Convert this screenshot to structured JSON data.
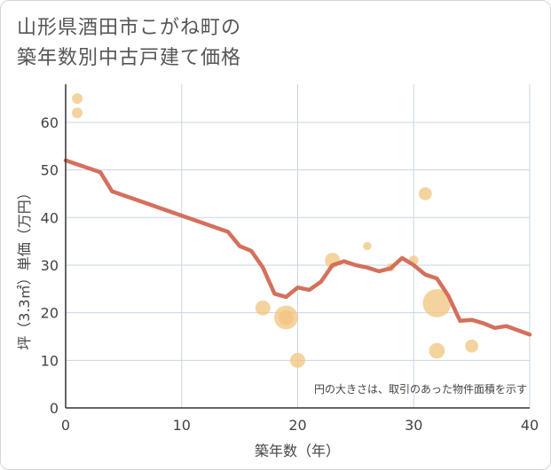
{
  "title_lines": [
    "山形県酒田市こがね町の",
    "築年数別中古戸建て価格"
  ],
  "chart_data": {
    "type": "scatter",
    "xlabel": "築年数（年）",
    "ylabel": "坪（3.3㎡）単価（万円）",
    "xlim": [
      0,
      40
    ],
    "ylim": [
      0,
      68
    ],
    "xticks": [
      0,
      10,
      20,
      30,
      40
    ],
    "yticks": [
      0,
      10,
      20,
      30,
      40,
      50,
      60
    ],
    "grid": true,
    "note": "円の大きさは、取引のあった物件面積を示す",
    "colors": {
      "scatter": "#f2c47e",
      "line": "#d4705c",
      "grid": "#c9d6e6",
      "axis": "#333333"
    },
    "scatter": [
      {
        "x": 1,
        "y": 65,
        "size": 1
      },
      {
        "x": 1,
        "y": 62,
        "size": 1
      },
      {
        "x": 17,
        "y": 21,
        "size": 2
      },
      {
        "x": 19,
        "y": 19,
        "size": 5
      },
      {
        "x": 19,
        "y": 19,
        "size": 2
      },
      {
        "x": 20,
        "y": 10,
        "size": 2
      },
      {
        "x": 23,
        "y": 31,
        "size": 2
      },
      {
        "x": 26,
        "y": 34,
        "size": 0.6
      },
      {
        "x": 28,
        "y": 29.5,
        "size": 0.6
      },
      {
        "x": 30,
        "y": 31,
        "size": 0.8
      },
      {
        "x": 31,
        "y": 45,
        "size": 1.5
      },
      {
        "x": 32,
        "y": 22,
        "size": 7
      },
      {
        "x": 32,
        "y": 12,
        "size": 2.2
      },
      {
        "x": 35,
        "y": 13,
        "size": 1.5
      }
    ],
    "line": [
      {
        "x": 0,
        "y": 52
      },
      {
        "x": 3,
        "y": 49.5
      },
      {
        "x": 4,
        "y": 45.5
      },
      {
        "x": 14,
        "y": 37
      },
      {
        "x": 15,
        "y": 34
      },
      {
        "x": 16,
        "y": 33
      },
      {
        "x": 17,
        "y": 29.5
      },
      {
        "x": 18,
        "y": 24
      },
      {
        "x": 19,
        "y": 23.3
      },
      {
        "x": 20,
        "y": 25.3
      },
      {
        "x": 21,
        "y": 24.8
      },
      {
        "x": 22,
        "y": 26.5
      },
      {
        "x": 23,
        "y": 30
      },
      {
        "x": 24,
        "y": 30.8
      },
      {
        "x": 25,
        "y": 30
      },
      {
        "x": 26,
        "y": 29.5
      },
      {
        "x": 27,
        "y": 28.7
      },
      {
        "x": 28,
        "y": 29.3
      },
      {
        "x": 29,
        "y": 31.5
      },
      {
        "x": 30,
        "y": 30
      },
      {
        "x": 31,
        "y": 28
      },
      {
        "x": 32,
        "y": 27.2
      },
      {
        "x": 33,
        "y": 23.5
      },
      {
        "x": 34,
        "y": 18.3
      },
      {
        "x": 35,
        "y": 18.5
      },
      {
        "x": 36,
        "y": 17.8
      },
      {
        "x": 37,
        "y": 16.8
      },
      {
        "x": 38,
        "y": 17.2
      },
      {
        "x": 39,
        "y": 16.3
      },
      {
        "x": 40,
        "y": 15.4
      }
    ]
  }
}
